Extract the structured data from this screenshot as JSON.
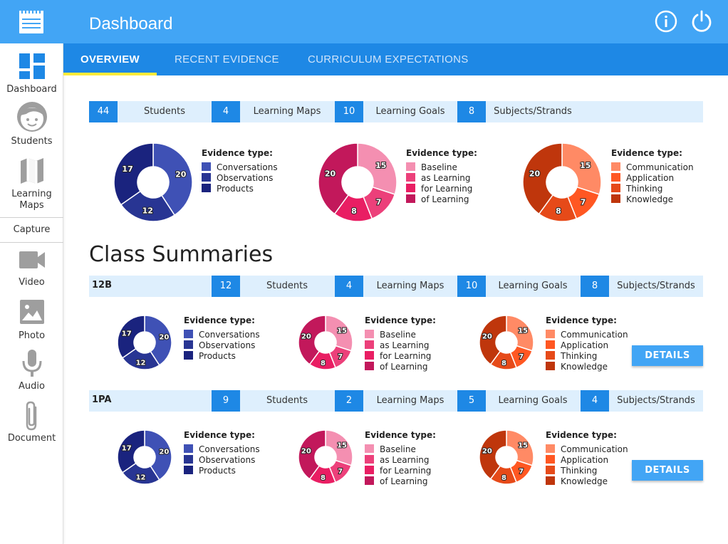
{
  "app": {
    "title": "Dashboard"
  },
  "sidebar": {
    "items": [
      {
        "label_lines": [
          "Dashboard"
        ],
        "icon": "dashboard-icon"
      },
      {
        "label_lines": [
          "Students"
        ],
        "icon": "student-face-icon"
      },
      {
        "label_lines": [
          "Learning",
          "Maps"
        ],
        "icon": "map-icon"
      },
      {
        "label_lines": [
          "Video"
        ],
        "icon": "video-camera-icon"
      },
      {
        "label_lines": [
          "Photo"
        ],
        "icon": "photo-icon"
      },
      {
        "label_lines": [
          "Audio"
        ],
        "icon": "microphone-icon"
      },
      {
        "label_lines": [
          "Document"
        ],
        "icon": "paperclip-icon"
      }
    ],
    "capture_label": "Capture"
  },
  "tabs": [
    {
      "label": "OVERVIEW",
      "active": true
    },
    {
      "label": "RECENT EVIDENCE",
      "active": false
    },
    {
      "label": "CURRICULUM EXPECTATIONS",
      "active": false
    }
  ],
  "overview": {
    "stats": [
      {
        "value": "44",
        "label": "Students"
      },
      {
        "value": "4",
        "label": "Learning Maps"
      },
      {
        "value": "10",
        "label": "Learning Goals"
      },
      {
        "value": "8",
        "label": "Subjects/Strands"
      }
    ]
  },
  "class_summaries_title": "Class Summaries",
  "classes": [
    {
      "name": "12B",
      "stats": [
        {
          "value": "12",
          "label": "Students"
        },
        {
          "value": "4",
          "label": "Learning Maps"
        },
        {
          "value": "10",
          "label": "Learning Goals"
        },
        {
          "value": "8",
          "label": "Subjects/Strands"
        }
      ],
      "details_label": "DETAILS"
    },
    {
      "name": "1PA",
      "stats": [
        {
          "value": "9",
          "label": "Students"
        },
        {
          "value": "2",
          "label": "Learning Maps"
        },
        {
          "value": "5",
          "label": "Learning Goals"
        },
        {
          "value": "4",
          "label": "Subjects/Strands"
        }
      ],
      "details_label": "DETAILS"
    }
  ],
  "chart_data": [
    {
      "type": "pie",
      "style": "donut",
      "legend_title": "Evidence type:",
      "categories": [
        "Conversations",
        "Observations",
        "Products"
      ],
      "values": [
        20,
        12,
        17
      ],
      "colors": [
        "#3f51b5",
        "#283593",
        "#1a237e"
      ]
    },
    {
      "type": "pie",
      "style": "donut",
      "legend_title": "Evidence type:",
      "categories": [
        "Baseline",
        "as Learning",
        "for Learning",
        "of Learning"
      ],
      "values": [
        15,
        7,
        8,
        20
      ],
      "colors": [
        "#f48fb1",
        "#ec407a",
        "#e91e63",
        "#c2185b"
      ]
    },
    {
      "type": "pie",
      "style": "donut",
      "legend_title": "Evidence type:",
      "categories": [
        "Communication",
        "Application",
        "Thinking",
        "Knowledge"
      ],
      "values": [
        15,
        7,
        8,
        20
      ],
      "colors": [
        "#ff8a65",
        "#ff5722",
        "#e64a19",
        "#bf360c"
      ]
    }
  ]
}
